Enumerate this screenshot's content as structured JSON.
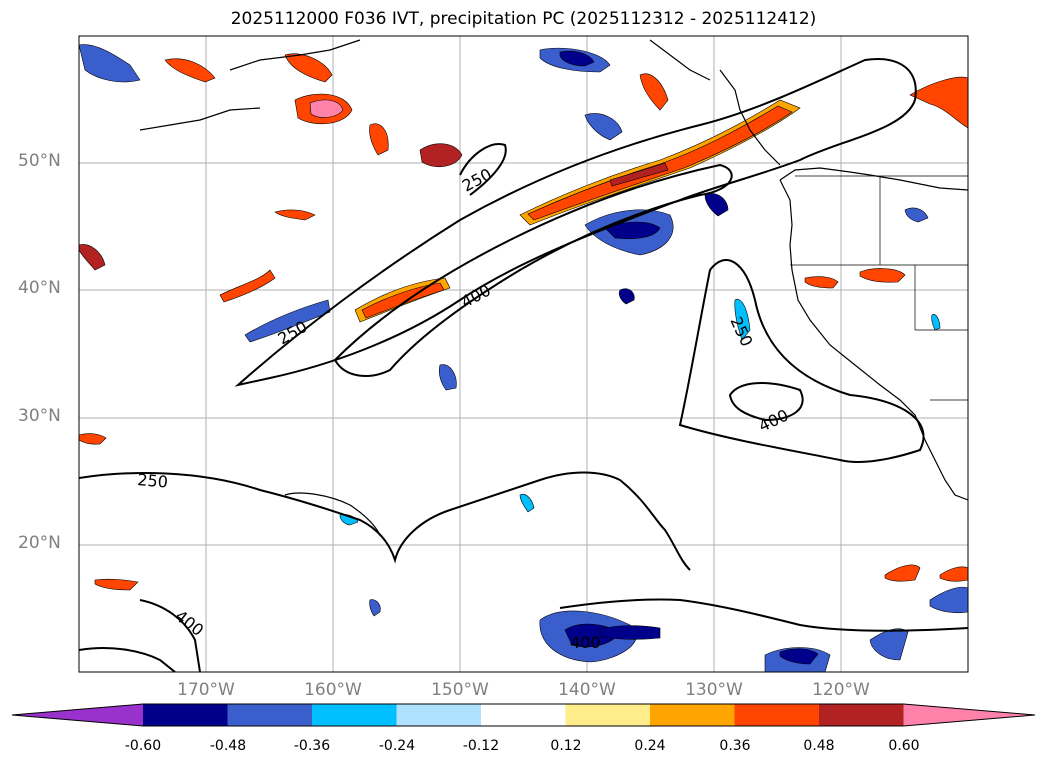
{
  "title": "2025112000 F036 IVT, precipitation PC (2025112312 - 2025112412)",
  "lat_ticks": [
    {
      "label": "50°N",
      "value": 50
    },
    {
      "label": "40°N",
      "value": 40
    },
    {
      "label": "30°N",
      "value": 30
    },
    {
      "label": "20°N",
      "value": 20
    }
  ],
  "lon_ticks": [
    {
      "label": "170°W",
      "value": -170
    },
    {
      "label": "160°W",
      "value": -160
    },
    {
      "label": "150°W",
      "value": -150
    },
    {
      "label": "140°W",
      "value": -140
    },
    {
      "label": "130°W",
      "value": -130
    },
    {
      "label": "120°W",
      "value": -120
    }
  ],
  "contour_labels": [
    "250",
    "250",
    "250",
    "250",
    "400",
    "400",
    "400",
    "400"
  ],
  "colorbar": {
    "ticks": [
      "-0.60",
      "-0.48",
      "-0.36",
      "-0.24",
      "-0.12",
      "0.12",
      "0.24",
      "0.36",
      "0.48",
      "0.60"
    ],
    "colors": [
      "#9932cc",
      "#00008b",
      "#3a5fcd",
      "#00bfff",
      "#b0e2ff",
      "#ffffff",
      "#ffec8b",
      "#ffa500",
      "#ff4500",
      "#b22222",
      "#ff82ab"
    ]
  },
  "grid": "on"
}
